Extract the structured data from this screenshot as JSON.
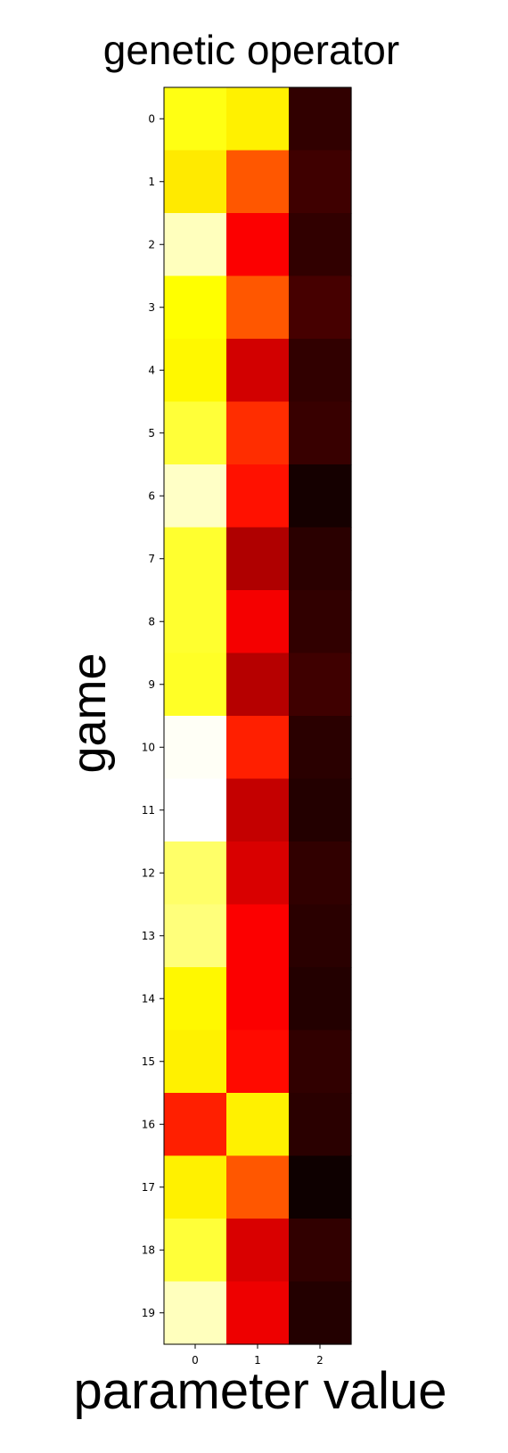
{
  "chart_data": {
    "type": "heatmap",
    "title": "genetic operator",
    "xlabel": "parameter value",
    "ylabel": "game",
    "colormap": "hot",
    "colormap_stops": [
      "#000000",
      "#ff0000",
      "#ffff00",
      "#ffffff"
    ],
    "x_categories": [
      "0",
      "1",
      "2"
    ],
    "y_categories": [
      "0",
      "1",
      "2",
      "3",
      "4",
      "5",
      "6",
      "7",
      "8",
      "9",
      "10",
      "11",
      "12",
      "13",
      "14",
      "15",
      "16",
      "17",
      "18",
      "19"
    ],
    "values": [
      [
        0.75,
        0.71,
        0.07
      ],
      [
        0.7,
        0.49,
        0.09
      ],
      [
        0.93,
        0.36,
        0.07
      ],
      [
        0.73,
        0.49,
        0.1
      ],
      [
        0.72,
        0.3,
        0.07
      ],
      [
        0.79,
        0.43,
        0.08
      ],
      [
        0.94,
        0.39,
        0.03
      ],
      [
        0.78,
        0.25,
        0.06
      ],
      [
        0.78,
        0.35,
        0.07
      ],
      [
        0.77,
        0.26,
        0.09
      ],
      [
        0.99,
        0.41,
        0.06
      ],
      [
        1.0,
        0.28,
        0.05
      ],
      [
        0.84,
        0.31,
        0.07
      ],
      [
        0.86,
        0.36,
        0.06
      ],
      [
        0.72,
        0.36,
        0.05
      ],
      [
        0.71,
        0.38,
        0.07
      ],
      [
        0.41,
        0.71,
        0.06
      ],
      [
        0.71,
        0.49,
        0.02
      ],
      [
        0.79,
        0.31,
        0.07
      ],
      [
        0.93,
        0.34,
        0.05
      ]
    ]
  }
}
